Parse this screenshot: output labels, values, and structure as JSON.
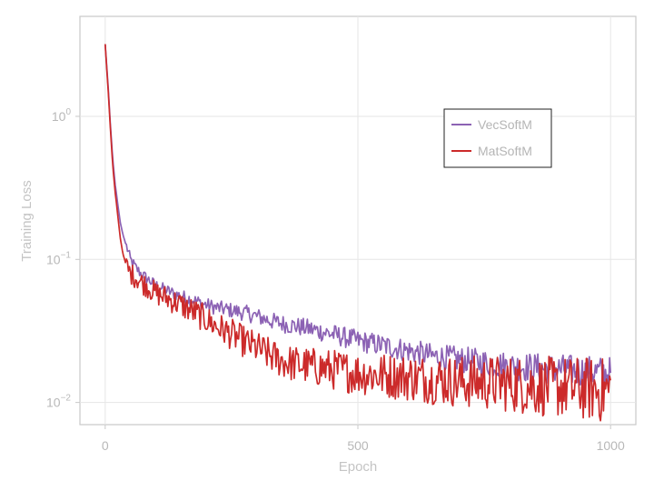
{
  "chart_data": {
    "type": "line",
    "title": "",
    "xlabel": "Epoch",
    "ylabel": "Training Loss",
    "xlim": [
      -50,
      1050
    ],
    "ylim": [
      0.007,
      5
    ],
    "yscale": "log",
    "grid": true,
    "legend_position": "upper-right",
    "x_ticks": [
      {
        "value": 0,
        "label": "0"
      },
      {
        "value": 500,
        "label": "500"
      },
      {
        "value": 1000,
        "label": "1000"
      }
    ],
    "y_ticks": [
      {
        "value": 1,
        "base": "10",
        "exp": "0"
      },
      {
        "value": 0.1,
        "base": "10",
        "exp": "−1"
      },
      {
        "value": 0.01,
        "base": "10",
        "exp": "−2"
      }
    ],
    "series": [
      {
        "name": "VecSoftM",
        "color": "#8c62b4",
        "x": [
          0,
          5,
          10,
          15,
          20,
          25,
          30,
          35,
          40,
          45,
          50,
          60,
          70,
          80,
          90,
          100,
          120,
          140,
          160,
          180,
          200,
          220,
          250,
          280,
          300,
          330,
          360,
          400,
          450,
          500,
          550,
          600,
          650,
          700,
          750,
          800,
          850,
          900,
          950,
          1000
        ],
        "y": [
          3.2,
          1.8,
          0.9,
          0.5,
          0.33,
          0.24,
          0.18,
          0.15,
          0.13,
          0.115,
          0.1,
          0.088,
          0.08,
          0.075,
          0.07,
          0.066,
          0.061,
          0.057,
          0.054,
          0.051,
          0.048,
          0.046,
          0.044,
          0.042,
          0.04,
          0.037,
          0.035,
          0.033,
          0.03,
          0.027,
          0.025,
          0.023,
          0.021,
          0.02,
          0.019,
          0.018,
          0.0175,
          0.017,
          0.0165,
          0.016
        ],
        "noise": 0.035
      },
      {
        "name": "MatSoftM",
        "color": "#cc2a2a",
        "x": [
          0,
          5,
          10,
          15,
          20,
          25,
          30,
          35,
          40,
          45,
          50,
          60,
          70,
          80,
          90,
          100,
          120,
          140,
          160,
          180,
          200,
          220,
          250,
          280,
          300,
          330,
          360,
          400,
          450,
          500,
          550,
          600,
          650,
          700,
          750,
          800,
          850,
          900,
          950,
          1000
        ],
        "y": [
          3.2,
          1.7,
          0.85,
          0.45,
          0.29,
          0.2,
          0.14,
          0.11,
          0.095,
          0.085,
          0.08,
          0.075,
          0.07,
          0.066,
          0.062,
          0.058,
          0.054,
          0.05,
          0.046,
          0.042,
          0.038,
          0.034,
          0.03,
          0.026,
          0.024,
          0.021,
          0.019,
          0.018,
          0.017,
          0.016,
          0.0155,
          0.015,
          0.0145,
          0.014,
          0.0138,
          0.0135,
          0.013,
          0.0128,
          0.0125,
          0.012
        ],
        "noise": 0.07
      }
    ]
  }
}
